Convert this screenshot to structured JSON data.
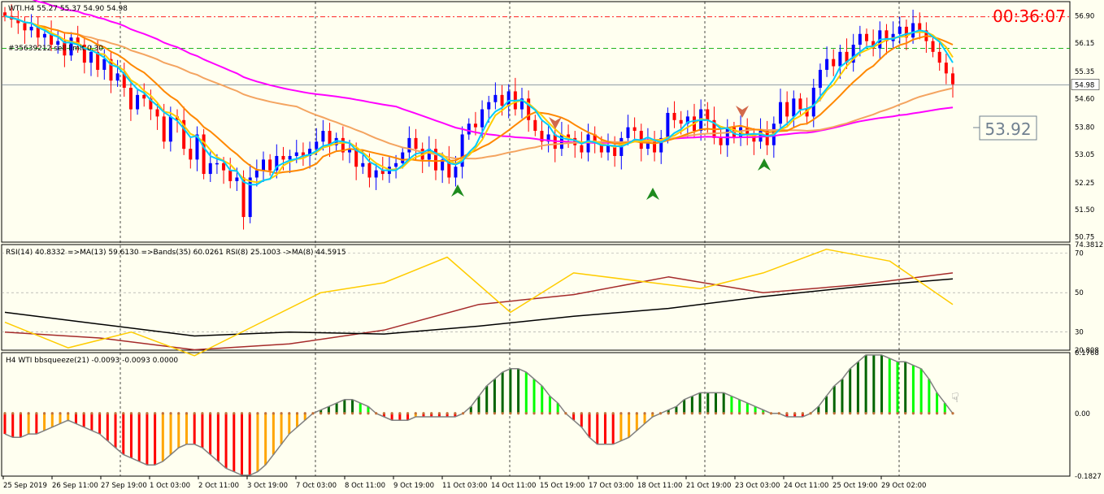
{
  "colors": {
    "background": "#FFFFF0",
    "bull_candle": "#0000FF",
    "bear_candle": "#FF0000",
    "ma_fast": "#00CCFF",
    "ma_yellow": "#FFCC00",
    "ma_orange": "#FF8800",
    "ma_slow": "#F4A460",
    "ma_magenta": "#FF00FF",
    "ma_dark_green": "#228B22",
    "rsi_yellow": "#FFCC00",
    "rsi_brown": "#A52A2A",
    "rsi_black": "#000000",
    "hist_darkgreen": "#006400",
    "hist_lime": "#00FF00",
    "hist_red": "#FF0000",
    "hist_orange": "#FFA500",
    "timer": "#FF0000"
  },
  "header": {
    "symbol_info": "WTI.H4 55.27 55.37 54.90 54.98",
    "order_label": "#35639212 sell limit 0.30",
    "timer": "00:36:07",
    "price_box": "53.92"
  },
  "x_labels": [
    "25 Sep 2019",
    "26 Sep 11:00",
    "27 Sep 19:00",
    "1 Oct 03:00",
    "2 Oct 11:00",
    "3 Oct 19:00",
    "7 Oct 03:00",
    "8 Oct 11:00",
    "9 Oct 19:00",
    "11 Oct 03:00",
    "14 Oct 11:00",
    "15 Oct 19:00",
    "17 Oct 03:00",
    "18 Oct 11:00",
    "21 Oct 19:00",
    "23 Oct 03:00",
    "24 Oct 11:00",
    "25 Oct 19:00",
    "29 Oct 02:00"
  ],
  "chart_data": [
    {
      "type": "candlestick",
      "title": "WTI.H4",
      "price_ticks": [
        "56.90",
        "56.15",
        "55.35",
        "54.98",
        "54.60",
        "53.80",
        "53.05",
        "52.25",
        "51.50",
        "50.75"
      ],
      "ylim": [
        50.6,
        57.3
      ],
      "current_price": 54.98,
      "order_line": 56.0,
      "closes": [
        56.9,
        56.8,
        56.7,
        56.5,
        56.6,
        56.3,
        56.4,
        56.1,
        56.2,
        55.8,
        56.3,
        56.1,
        55.6,
        55.9,
        55.4,
        55.7,
        55.1,
        55.3,
        54.9,
        54.3,
        54.7,
        54.6,
        54.3,
        54.1,
        53.4,
        54.1,
        54.0,
        53.2,
        52.9,
        53.6,
        52.5,
        52.8,
        52.8,
        52.6,
        52.3,
        52.4,
        51.3,
        52.4,
        52.6,
        52.9,
        52.6,
        53.0,
        52.9,
        53.0,
        53.1,
        53.0,
        53.2,
        53.4,
        53.7,
        53.3,
        53.5,
        53.1,
        53.2,
        52.7,
        52.8,
        52.4,
        52.6,
        52.5,
        52.7,
        52.8,
        53.1,
        53.5,
        53.2,
        52.9,
        53.2,
        52.6,
        52.9,
        52.4,
        52.7,
        53.6,
        53.9,
        53.8,
        54.3,
        54.5,
        54.7,
        54.4,
        54.8,
        54.3,
        54.6,
        54.0,
        53.7,
        53.4,
        53.6,
        53.2,
        53.6,
        53.5,
        53.3,
        53.1,
        53.6,
        53.4,
        53.1,
        53.3,
        53.0,
        53.5,
        53.8,
        53.7,
        53.2,
        53.4,
        53.1,
        53.5,
        54.2,
        54.0,
        53.9,
        54.1,
        53.7,
        54.3,
        54.0,
        53.5,
        53.3,
        53.8,
        53.5,
        53.8,
        53.6,
        53.4,
        53.7,
        53.3,
        53.9,
        54.5,
        54.1,
        54.6,
        54.3,
        54.1,
        54.9,
        55.4,
        55.7,
        55.5,
        55.9,
        55.6,
        56.1,
        56.4,
        56.2,
        56.0,
        56.5,
        56.2,
        56.4,
        56.6,
        56.3,
        56.7,
        56.5,
        56.2,
        55.9,
        55.6,
        55.3,
        55.0
      ]
    },
    {
      "type": "line",
      "title": "RSI(14) 40.8332 =>MA(13) 59.6130 =>Bands(35) 60.0261 RSI(8) 25.1003 ->MA(8) 44.5915",
      "y_ticks": [
        "74.3812",
        "70",
        "50",
        "30",
        "20.808"
      ],
      "ylim": [
        20.808,
        74.3812
      ],
      "series": [
        {
          "x": [
            0,
            15,
            30,
            45,
            60,
            75,
            90,
            105,
            120,
            135,
            150
          ],
          "values": [
            30,
            27,
            21,
            24,
            31,
            44,
            49,
            58,
            50,
            54,
            60
          ],
          "color": "#A52A2A"
        },
        {
          "x": [
            0,
            15,
            30,
            45,
            60,
            75,
            90,
            105,
            120,
            135,
            150
          ],
          "values": [
            40,
            34,
            28,
            30,
            29,
            33,
            38,
            42,
            48,
            53,
            57
          ],
          "color": "#000000"
        },
        {
          "x": [
            0,
            10,
            20,
            30,
            40,
            50,
            60,
            70,
            80,
            90,
            100,
            110,
            120,
            130,
            140,
            150
          ],
          "values": [
            35,
            22,
            30,
            18,
            34,
            50,
            55,
            68,
            40,
            60,
            56,
            52,
            60,
            72,
            66,
            44
          ],
          "color": "#FFCC00"
        }
      ]
    },
    {
      "type": "bar",
      "title": "H4 WTI bbsqueeze(21) -0.0093 -0.0093 0.0000",
      "y_ticks": [
        "0.1768",
        "0.00",
        "0.00",
        "-0.1827"
      ],
      "ylim": [
        -0.1827,
        0.1768
      ],
      "values": [
        -0.06,
        -0.07,
        -0.07,
        -0.06,
        -0.06,
        -0.05,
        -0.04,
        -0.03,
        -0.02,
        -0.03,
        -0.04,
        -0.05,
        -0.06,
        -0.08,
        -0.1,
        -0.12,
        -0.13,
        -0.14,
        -0.15,
        -0.15,
        -0.14,
        -0.12,
        -0.1,
        -0.09,
        -0.09,
        -0.1,
        -0.12,
        -0.14,
        -0.16,
        -0.17,
        -0.18,
        -0.18,
        -0.17,
        -0.15,
        -0.12,
        -0.09,
        -0.06,
        -0.04,
        -0.02,
        0.0,
        0.01,
        0.02,
        0.03,
        0.04,
        0.04,
        0.03,
        0.02,
        0.0,
        -0.01,
        -0.02,
        -0.02,
        -0.02,
        -0.01,
        -0.01,
        -0.01,
        -0.01,
        -0.01,
        -0.01,
        0.0,
        0.02,
        0.05,
        0.08,
        0.1,
        0.12,
        0.13,
        0.13,
        0.12,
        0.1,
        0.08,
        0.05,
        0.03,
        0.0,
        -0.02,
        -0.04,
        -0.07,
        -0.09,
        -0.09,
        -0.09,
        -0.08,
        -0.07,
        -0.05,
        -0.03,
        -0.01,
        0.0,
        0.01,
        0.02,
        0.04,
        0.05,
        0.06,
        0.06,
        0.06,
        0.06,
        0.05,
        0.04,
        0.03,
        0.02,
        0.01,
        0.0,
        0.0,
        -0.01,
        -0.01,
        -0.01,
        0.0,
        0.02,
        0.05,
        0.08,
        0.1,
        0.13,
        0.15,
        0.17,
        0.17,
        0.17,
        0.16,
        0.15,
        0.15,
        0.14,
        0.13,
        0.1,
        0.06,
        0.03,
        0.0
      ]
    }
  ]
}
